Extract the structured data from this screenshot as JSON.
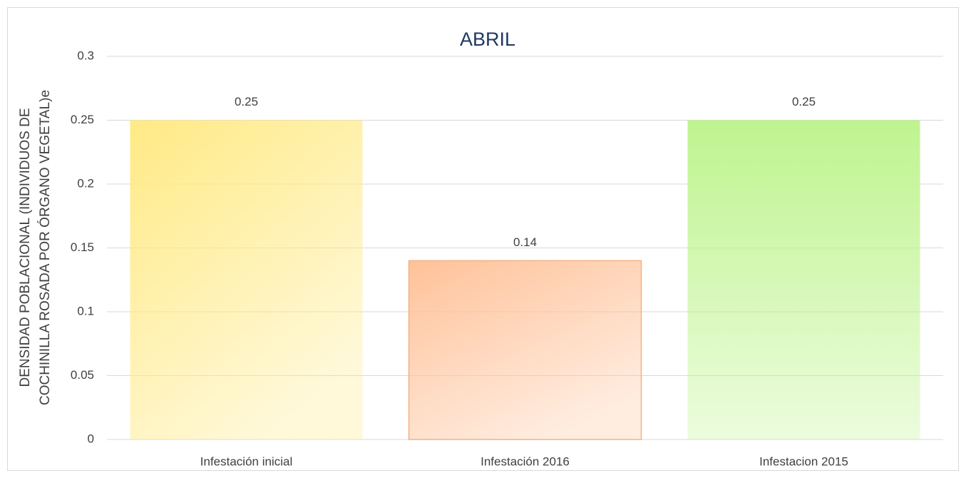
{
  "chart_data": {
    "type": "bar",
    "title": "ABRIL",
    "ylabel": [
      "DENSIDAD POBLACIONAL (INDIVIDUOS DE",
      "COCHINILLA ROSADA POR ÓRGANO VEGETAL)e"
    ],
    "categories": [
      "Infestación inicial",
      "Infestación 2016",
      "Infestacion  2015"
    ],
    "values": [
      0.25,
      0.14,
      0.25
    ],
    "colors": [
      "#ffea85",
      "#ffc299",
      "#bff48f"
    ],
    "ylim": [
      0,
      0.3
    ],
    "yticks": [
      0,
      0.05,
      0.1,
      0.15,
      0.2,
      0.25,
      0.3
    ],
    "grid": true
  }
}
